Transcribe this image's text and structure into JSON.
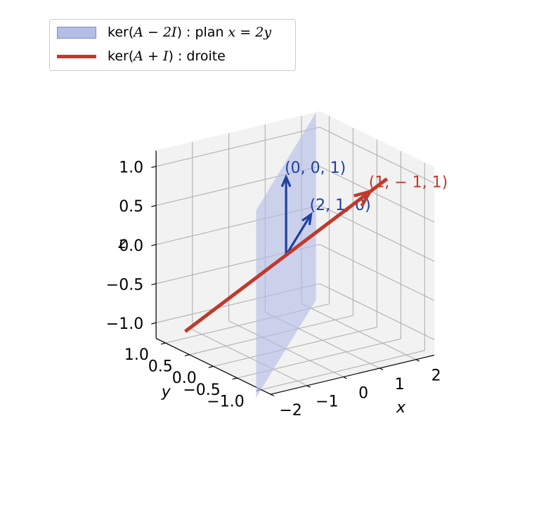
{
  "chart_data": {
    "type": "3d-line",
    "legend": {
      "placement": "top-left",
      "entries": [
        {
          "id": "plane",
          "pre": "ker(",
          "math": "A − 2I",
          "post": ") : plan",
          "math2": "x = 2y",
          "kind": "patch",
          "color": "#b4bde6"
        },
        {
          "id": "line",
          "pre": "ker(",
          "math": "A + I",
          "post": ") : droite",
          "math2": "",
          "kind": "line",
          "color": "#c0392b"
        }
      ]
    },
    "axes": {
      "x": {
        "label": "x",
        "range": [
          -2,
          2.5
        ],
        "ticks": [
          -2,
          -1,
          0,
          1,
          2
        ],
        "tick_labels": [
          "−2",
          "−1",
          "0",
          "1",
          "2"
        ]
      },
      "y": {
        "label": "y",
        "range": [
          -1.2,
          1.2
        ],
        "ticks": [
          -1.0,
          -0.5,
          0.0,
          0.5,
          1.0
        ],
        "tick_labels": [
          "−1.0",
          "−0.5",
          "0.0",
          "0.5",
          "1.0"
        ]
      },
      "z": {
        "label": "z",
        "range": [
          -1.2,
          1.2
        ],
        "ticks": [
          -1.0,
          -0.5,
          0.0,
          0.5,
          1.0
        ],
        "tick_labels": [
          "−1.0",
          "−0.5",
          "0.0",
          "0.5",
          "1.0"
        ]
      }
    },
    "grid": true,
    "view": {
      "elev": 20,
      "azim": -125
    },
    "plane": {
      "equation": "x = 2y",
      "corners": [
        [
          -2.4,
          -1.2,
          -1.2
        ],
        [
          2.4,
          1.2,
          -1.2
        ],
        [
          2.4,
          1.2,
          1.2
        ],
        [
          -2.4,
          -1.2,
          1.2
        ]
      ],
      "color": "#b4bde6"
    },
    "line": {
      "from": [
        -1.2,
        1.2,
        -1.2
      ],
      "to": [
        1.2,
        -1.2,
        1.2
      ],
      "direction": [
        1,
        -1,
        1
      ],
      "color": "#c0392b"
    },
    "vectors": [
      {
        "vector": [
          0,
          0,
          1
        ],
        "label": "(0, 0, 1)",
        "color": "#1f3fa0"
      },
      {
        "vector": [
          2,
          1,
          0
        ],
        "label": "(2, 1, 0)",
        "color": "#1f3fa0"
      },
      {
        "vector": [
          1,
          -1,
          1
        ],
        "label": "(1, − 1, 1)",
        "color": "#c0392b"
      }
    ]
  }
}
